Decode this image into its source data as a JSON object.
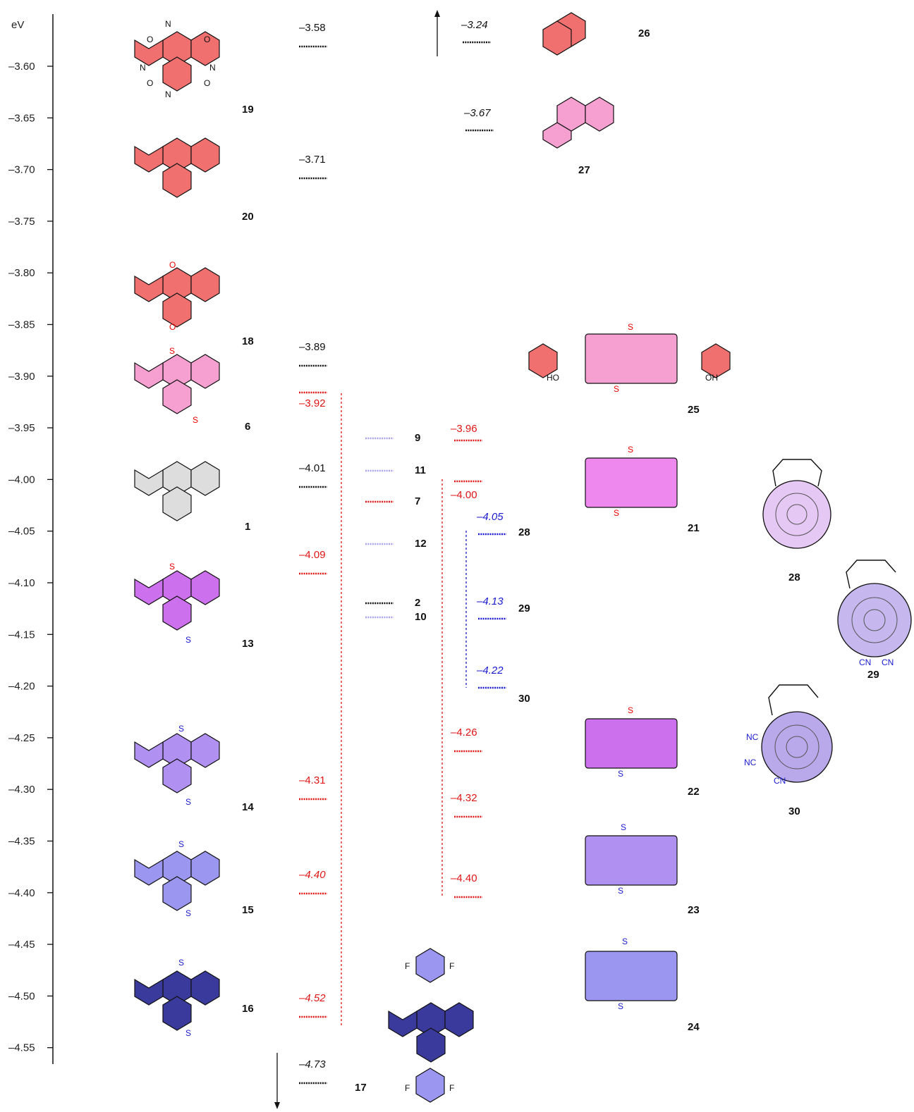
{
  "axis": {
    "unit": "eV",
    "ticks": [
      "-3.60",
      "-3.65",
      "-3.70",
      "-3.75",
      "-3.80",
      "-3.85",
      "-3.90",
      "-3.95",
      "-4.00",
      "-4.05",
      "-4.10",
      "-4.15",
      "-4.20",
      "-4.25",
      "-4.30",
      "-4.35",
      "-4.40",
      "-4.45",
      "-4.50",
      "-4.55"
    ]
  },
  "colors": {
    "black": "#111111",
    "red": "#e01515",
    "blue": "#1a1ad0",
    "lilac": "#a8a2e8",
    "salmon": "#f07070",
    "pink": "#f5a0d0",
    "magenta": "#ee88ee",
    "purple": "#cc70ee",
    "violet": "#b090f0",
    "periwinkle": "#9b96f0",
    "navy": "#3a3a9c",
    "gray": "#dddddd"
  },
  "levels": [
    {
      "id": "l1",
      "label": "–3.58",
      "value": -3.58,
      "color": "black",
      "italic": false
    },
    {
      "id": "l2",
      "label": "–3.71",
      "value": -3.71,
      "color": "black",
      "italic": false
    },
    {
      "id": "l3",
      "label": "–3.89",
      "value": -3.89,
      "color": "black",
      "italic": false
    },
    {
      "id": "l4",
      "label": "–3.92",
      "value": -3.92,
      "color": "red",
      "italic": false
    },
    {
      "id": "l5",
      "label": "–4.01",
      "value": -4.01,
      "color": "black",
      "italic": false
    },
    {
      "id": "l6",
      "label": "–4.09",
      "value": -4.09,
      "color": "red",
      "italic": false
    },
    {
      "id": "l7",
      "label": "–4.31",
      "value": -4.31,
      "color": "red",
      "italic": false
    },
    {
      "id": "l8",
      "label": "–4.40",
      "value": -4.4,
      "color": "red",
      "italic": true
    },
    {
      "id": "l9",
      "label": "–4.52",
      "value": -4.52,
      "color": "red",
      "italic": true
    },
    {
      "id": "l10",
      "label": "–4.73",
      "value": -4.73,
      "color": "black",
      "italic": true
    },
    {
      "id": "l11",
      "label": "9",
      "value": -3.96,
      "color": "lilac",
      "italic": false
    },
    {
      "id": "l12",
      "label": "11",
      "value": -3.99,
      "color": "lilac",
      "italic": false
    },
    {
      "id": "l13",
      "label": "7",
      "value": -4.02,
      "color": "red",
      "italic": false
    },
    {
      "id": "l14",
      "label": "12",
      "value": -4.06,
      "color": "lilac",
      "italic": false
    },
    {
      "id": "l15",
      "label": "2",
      "value": -4.12,
      "color": "black",
      "italic": false
    },
    {
      "id": "l16",
      "label": "10",
      "value": -4.13,
      "color": "lilac",
      "italic": false
    },
    {
      "id": "l17",
      "label": "–3.96",
      "value": -3.96,
      "color": "red",
      "italic": false
    },
    {
      "id": "l18",
      "label": "–4.00",
      "value": -4.0,
      "color": "red",
      "italic": false
    },
    {
      "id": "l19",
      "label": "–4.26",
      "value": -4.26,
      "color": "red",
      "italic": false
    },
    {
      "id": "l20",
      "label": "–4.32",
      "value": -4.32,
      "color": "red",
      "italic": false
    },
    {
      "id": "l21",
      "label": "–4.40",
      "value": -4.4,
      "color": "red",
      "italic": false
    },
    {
      "id": "l22",
      "label": "–4.05",
      "value": -4.05,
      "color": "blue",
      "italic": true
    },
    {
      "id": "l23",
      "label": "–4.13",
      "value": -4.13,
      "color": "blue",
      "italic": true
    },
    {
      "id": "l24",
      "label": "–4.22",
      "value": -4.22,
      "color": "blue",
      "italic": true
    },
    {
      "id": "l25",
      "label": "–3.24",
      "value": -3.24,
      "color": "black",
      "italic": true
    },
    {
      "id": "l26",
      "label": "–3.67",
      "value": -3.67,
      "color": "black",
      "italic": true
    }
  ],
  "compound_ids": [
    "19",
    "20",
    "18",
    "6",
    "1",
    "13",
    "14",
    "15",
    "16",
    "17",
    "9",
    "11",
    "7",
    "12",
    "2",
    "10",
    "28",
    "29",
    "30",
    "26",
    "27",
    "25",
    "21",
    "22",
    "23",
    "24"
  ],
  "atoms": {
    "N": "N",
    "O": "O",
    "S": "S",
    "F": "F",
    "HO": "HO",
    "OH": "OH",
    "CN": "CN",
    "NC": "NC"
  }
}
